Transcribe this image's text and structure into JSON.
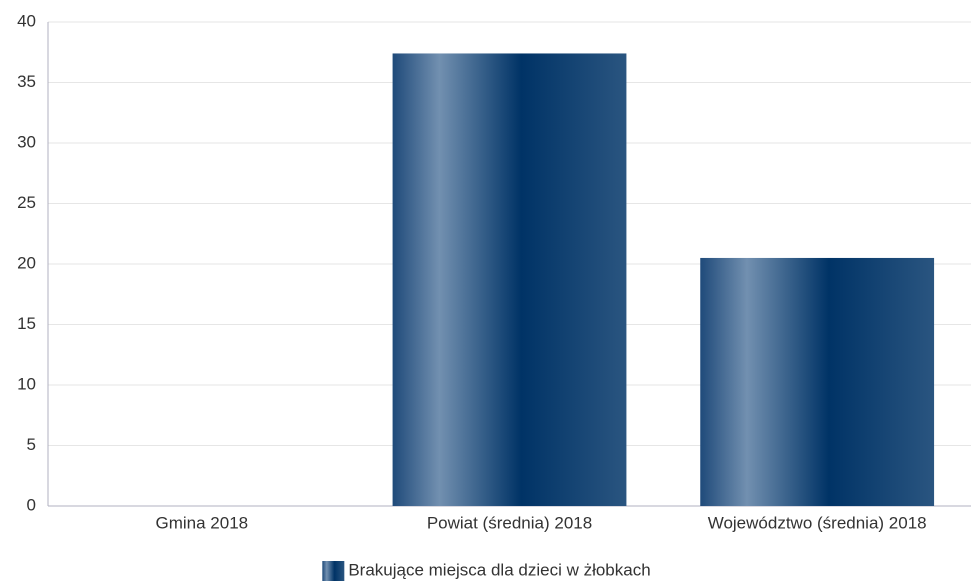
{
  "chart_data": {
    "type": "bar",
    "categories": [
      "Gmina 2018",
      "Powiat (średnia) 2018",
      "Województwo (średnia) 2018"
    ],
    "series": [
      {
        "name": "Brakujące miejsca dla dzieci w żłobkach",
        "color": "#003366",
        "values": [
          0,
          37.4,
          20.5
        ]
      }
    ],
    "ylim": [
      0,
      40
    ],
    "yticks": [
      0,
      5,
      10,
      15,
      20,
      25,
      30,
      35,
      40
    ],
    "grid": true,
    "legend": "bottom"
  }
}
